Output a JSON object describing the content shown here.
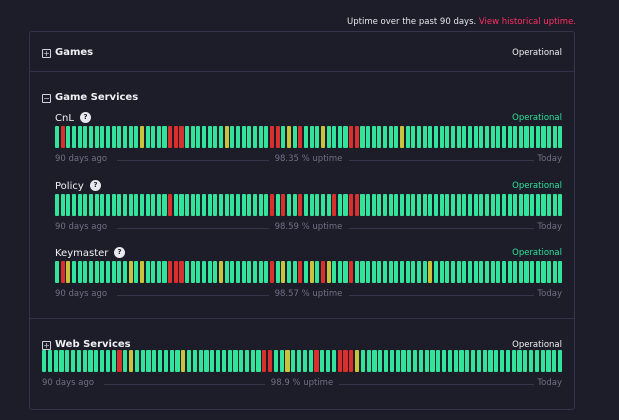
{
  "header": {
    "text": "Uptime over the past 90 days.",
    "link": "View historical uptime."
  },
  "status_colors": {
    "g": "#31e39b",
    "y": "#c9c33c",
    "r": "#d8302c"
  },
  "groups": [
    {
      "name": "Games",
      "status": "Operational",
      "expanded": false
    },
    {
      "name": "Game Services",
      "expanded": true,
      "components": [
        {
          "name": "CnL",
          "status": "Operational",
          "start": "90 days ago",
          "uptime": "98.35 % uptime",
          "end": "Today",
          "days": [
            "g",
            "r",
            "g",
            "g",
            "g",
            "g",
            "g",
            "g",
            "g",
            "g",
            "g",
            "g",
            "g",
            "g",
            "g",
            "y",
            "g",
            "g",
            "g",
            "g",
            "r",
            "r",
            "r",
            "g",
            "g",
            "g",
            "g",
            "g",
            "g",
            "g",
            "y",
            "g",
            "g",
            "g",
            "g",
            "g",
            "g",
            "g",
            "r",
            "r",
            "g",
            "y",
            "g",
            "r",
            "g",
            "g",
            "g",
            "y",
            "g",
            "g",
            "g",
            "g",
            "r",
            "r",
            "g",
            "g",
            "g",
            "g",
            "g",
            "g",
            "g",
            "y",
            "g",
            "g",
            "g",
            "g",
            "g",
            "g",
            "g",
            "g",
            "g",
            "g",
            "g",
            "g",
            "g",
            "g",
            "g",
            "g",
            "g",
            "g",
            "g",
            "g",
            "g",
            "g",
            "g",
            "g",
            "g",
            "g",
            "g",
            "g"
          ]
        },
        {
          "name": "Policy",
          "status": "Operational",
          "start": "90 days ago",
          "uptime": "98.59 % uptime",
          "end": "Today",
          "days": [
            "g",
            "g",
            "g",
            "g",
            "g",
            "g",
            "g",
            "g",
            "g",
            "g",
            "g",
            "g",
            "g",
            "g",
            "g",
            "g",
            "g",
            "g",
            "g",
            "g",
            "r",
            "g",
            "g",
            "g",
            "g",
            "g",
            "g",
            "g",
            "g",
            "g",
            "g",
            "g",
            "g",
            "g",
            "g",
            "g",
            "g",
            "g",
            "r",
            "g",
            "r",
            "g",
            "g",
            "r",
            "g",
            "g",
            "g",
            "g",
            "g",
            "r",
            "g",
            "g",
            "r",
            "r",
            "g",
            "g",
            "g",
            "g",
            "g",
            "g",
            "g",
            "g",
            "g",
            "g",
            "g",
            "g",
            "g",
            "g",
            "g",
            "g",
            "g",
            "g",
            "g",
            "g",
            "g",
            "g",
            "g",
            "g",
            "g",
            "g",
            "g",
            "g",
            "g",
            "g",
            "g",
            "g",
            "g",
            "g",
            "g",
            "g"
          ]
        },
        {
          "name": "Keymaster",
          "status": "Operational",
          "start": "90 days ago",
          "uptime": "98.57 % uptime",
          "end": "Today",
          "days": [
            "g",
            "r",
            "y",
            "g",
            "g",
            "g",
            "g",
            "g",
            "g",
            "g",
            "g",
            "g",
            "g",
            "y",
            "g",
            "y",
            "g",
            "g",
            "g",
            "g",
            "r",
            "r",
            "r",
            "g",
            "g",
            "g",
            "g",
            "g",
            "g",
            "y",
            "g",
            "g",
            "g",
            "g",
            "g",
            "g",
            "g",
            "g",
            "r",
            "g",
            "y",
            "g",
            "g",
            "r",
            "g",
            "y",
            "g",
            "r",
            "y",
            "g",
            "g",
            "g",
            "r",
            "g",
            "g",
            "g",
            "g",
            "g",
            "g",
            "g",
            "g",
            "g",
            "g",
            "g",
            "g",
            "g",
            "y",
            "g",
            "g",
            "g",
            "g",
            "g",
            "g",
            "g",
            "g",
            "g",
            "g",
            "g",
            "g",
            "g",
            "g",
            "g",
            "g",
            "g",
            "g",
            "g",
            "g",
            "g",
            "g",
            "g"
          ]
        }
      ]
    },
    {
      "name": "Web Services",
      "status": "Operational",
      "expanded": false,
      "start": "90 days ago",
      "uptime": "98.9 % uptime",
      "end": "Today",
      "days": [
        "g",
        "g",
        "g",
        "g",
        "g",
        "g",
        "g",
        "g",
        "g",
        "g",
        "g",
        "g",
        "g",
        "r",
        "g",
        "y",
        "g",
        "g",
        "g",
        "g",
        "g",
        "g",
        "g",
        "g",
        "y",
        "g",
        "g",
        "g",
        "g",
        "g",
        "g",
        "g",
        "g",
        "g",
        "g",
        "g",
        "g",
        "g",
        "r",
        "r",
        "g",
        "g",
        "y",
        "g",
        "g",
        "g",
        "g",
        "r",
        "g",
        "g",
        "g",
        "r",
        "r",
        "r",
        "y",
        "g",
        "g",
        "g",
        "g",
        "g",
        "g",
        "g",
        "g",
        "g",
        "g",
        "g",
        "g",
        "g",
        "g",
        "g",
        "g",
        "g",
        "g",
        "g",
        "g",
        "g",
        "g",
        "g",
        "g",
        "g",
        "g",
        "g",
        "g",
        "g",
        "g",
        "g",
        "g",
        "g",
        "g",
        "g"
      ]
    }
  ]
}
